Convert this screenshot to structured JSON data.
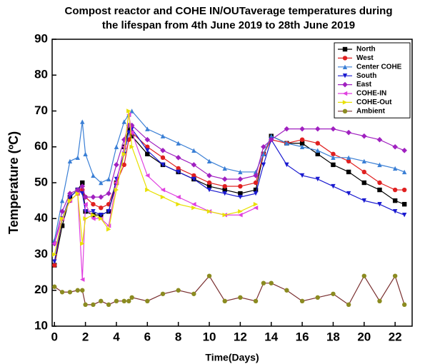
{
  "chart_data": {
    "type": "line",
    "title": [
      "Compost reactor and COHE IN/OUTaverage temperatures during",
      "the lifespan from 4th June 2019 to 28th June 2019"
    ],
    "x_label": "Time(Days)",
    "y_label": "Temperature (ºC)",
    "xlim": [
      -0.15,
      23.1
    ],
    "ylim": [
      10,
      90
    ],
    "xticks": [
      0,
      2,
      4,
      6,
      8,
      10,
      12,
      14,
      16,
      18,
      20,
      22
    ],
    "yticks": [
      10,
      20,
      30,
      40,
      50,
      60,
      70,
      80,
      90
    ],
    "legend": "upper right",
    "x": [
      0,
      0.5,
      1,
      1.5,
      1.8,
      2,
      2.5,
      3,
      3.5,
      4,
      4.5,
      4.8,
      5,
      6,
      7,
      8,
      9,
      10,
      11,
      12,
      13,
      13.5,
      14,
      15,
      16,
      17,
      18,
      19,
      20,
      21,
      22,
      22.6
    ],
    "series": [
      {
        "name": "North",
        "color": "#000000",
        "marker": "square",
        "values": [
          27,
          38,
          46,
          48,
          50,
          42,
          41,
          41,
          42,
          50,
          60,
          65,
          63,
          58,
          55,
          53,
          51,
          49,
          48,
          47,
          48,
          58,
          63,
          61,
          61,
          58,
          55,
          53,
          50,
          48,
          45,
          44
        ]
      },
      {
        "name": "West",
        "color": "#e02020",
        "marker": "circle",
        "values": [
          27,
          40,
          45,
          47,
          48,
          46,
          44,
          43,
          44,
          50,
          55,
          62,
          64,
          60,
          57,
          54,
          52,
          50,
          49,
          49,
          50,
          58,
          62,
          61,
          62,
          61,
          58,
          56,
          53,
          50,
          48,
          48
        ]
      },
      {
        "name": "Center COHE",
        "color": "#3a7fd5",
        "marker": "triangle-up",
        "values": [
          34,
          45,
          56,
          57,
          67,
          58,
          52,
          50,
          51,
          60,
          67,
          69,
          70,
          65,
          63,
          61,
          59,
          56,
          54,
          53,
          53,
          58,
          63,
          61,
          60,
          59,
          57,
          57,
          56,
          55,
          54,
          53
        ]
      },
      {
        "name": "South",
        "color": "#1a1ad0",
        "marker": "triangle-down",
        "values": [
          28,
          40,
          46,
          48,
          47,
          42,
          42,
          41,
          42,
          51,
          58,
          64,
          65,
          59,
          55,
          53,
          51,
          48,
          47,
          46,
          47,
          55,
          62,
          55,
          52,
          51,
          49,
          47,
          45,
          44,
          42,
          41
        ]
      },
      {
        "name": "East",
        "color": "#a020c0",
        "marker": "diamond",
        "values": [
          33,
          42,
          47,
          48,
          49,
          46,
          46,
          46,
          47,
          55,
          62,
          66,
          66,
          62,
          59,
          57,
          55,
          52,
          51,
          51,
          52,
          60,
          62,
          65,
          65,
          65,
          65,
          64,
          63,
          62,
          60,
          59
        ]
      },
      {
        "name": "COHE-IN",
        "color": "#e040e0",
        "marker": "triangle-left",
        "values": [
          33,
          40,
          45,
          47,
          23,
          44,
          40,
          40,
          38,
          50,
          60,
          69,
          64,
          52,
          48,
          46,
          44,
          42,
          41,
          41,
          43,
          null,
          null,
          null,
          null,
          null,
          null,
          null,
          null,
          null,
          null,
          null
        ]
      },
      {
        "name": "COHE-Out",
        "color": "#e8e000",
        "marker": "triangle-right",
        "values": [
          30,
          40,
          45,
          47,
          33,
          40,
          41,
          40,
          37,
          48,
          58,
          70,
          60,
          48,
          46,
          44,
          43,
          42,
          41,
          42,
          44,
          null,
          null,
          null,
          null,
          null,
          null,
          null,
          null,
          null,
          null,
          null
        ]
      },
      {
        "name": "Ambient",
        "color": "#7a3030",
        "marker_color": "#8b8b20",
        "marker": "circle",
        "values": [
          21,
          19.5,
          19.5,
          20,
          20,
          16,
          16,
          17,
          16,
          17,
          17,
          17,
          18,
          17,
          19,
          20,
          19,
          24,
          17,
          18,
          17,
          22,
          22,
          20,
          17,
          18,
          19,
          16,
          24,
          17,
          24,
          16
        ]
      }
    ]
  }
}
